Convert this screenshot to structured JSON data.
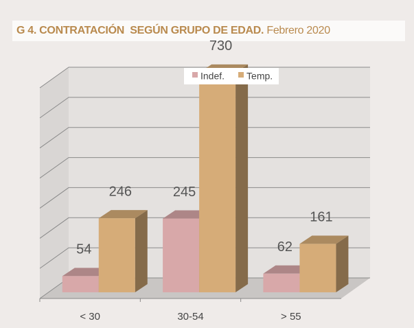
{
  "chart_data": {
    "type": "bar3d",
    "title": "G 4. CONTRATACIÓN  SEGÚN GRUPO DE EDAD.",
    "subtitle": "Febrero 2020",
    "categories": [
      "< 30",
      "30-54",
      "> 55"
    ],
    "series": [
      {
        "name": "Indef.",
        "color": "#d8a8a9",
        "values": [
          54,
          245,
          62
        ]
      },
      {
        "name": "Temp.",
        "color": "#d6ac78",
        "values": [
          246,
          730,
          161
        ]
      }
    ],
    "ylim": [
      0,
      700
    ],
    "yticks": [
      0,
      100,
      200,
      300,
      400,
      500,
      600,
      700
    ],
    "grid": true,
    "legend": "top"
  }
}
